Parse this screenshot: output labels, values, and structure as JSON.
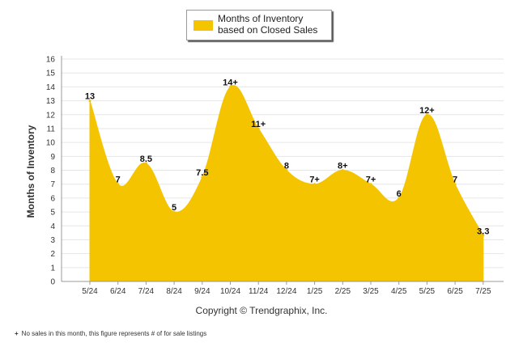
{
  "legend": {
    "label": "Months of Inventory based on Closed Sales"
  },
  "copyright": "Copyright © Trendgraphix, Inc.",
  "footnote": {
    "marker": "+",
    "text": "No sales in this month, this figure represents # of for sale listings"
  },
  "colors": {
    "area": "#f5c400",
    "grid": "#e6e6e6",
    "axis": "#999999"
  },
  "chart_data": {
    "type": "area",
    "categories": [
      "5/24",
      "6/24",
      "7/24",
      "8/24",
      "9/24",
      "10/24",
      "11/24",
      "12/24",
      "1/25",
      "2/25",
      "3/25",
      "4/25",
      "5/25",
      "6/25",
      "7/25"
    ],
    "series": [
      {
        "name": "Months of Inventory based on Closed Sales",
        "values": [
          13,
          7,
          8.5,
          5,
          7.5,
          14,
          11,
          8,
          7,
          8,
          7,
          6,
          12,
          7,
          3.3
        ],
        "labels": [
          "13",
          "7",
          "8.5",
          "5",
          "7.5",
          "14+",
          "11+",
          "8",
          "7+",
          "8+",
          "7+",
          "6",
          "12+",
          "7",
          "3.3"
        ]
      }
    ],
    "ylabel": "Months of Inventory",
    "xlabel": "",
    "ylim": [
      0,
      16
    ],
    "yticks": [
      0,
      1,
      2,
      3,
      4,
      5,
      6,
      7,
      8,
      9,
      10,
      11,
      12,
      13,
      14,
      15,
      16
    ],
    "grid": true,
    "legend_position": "top-center"
  }
}
